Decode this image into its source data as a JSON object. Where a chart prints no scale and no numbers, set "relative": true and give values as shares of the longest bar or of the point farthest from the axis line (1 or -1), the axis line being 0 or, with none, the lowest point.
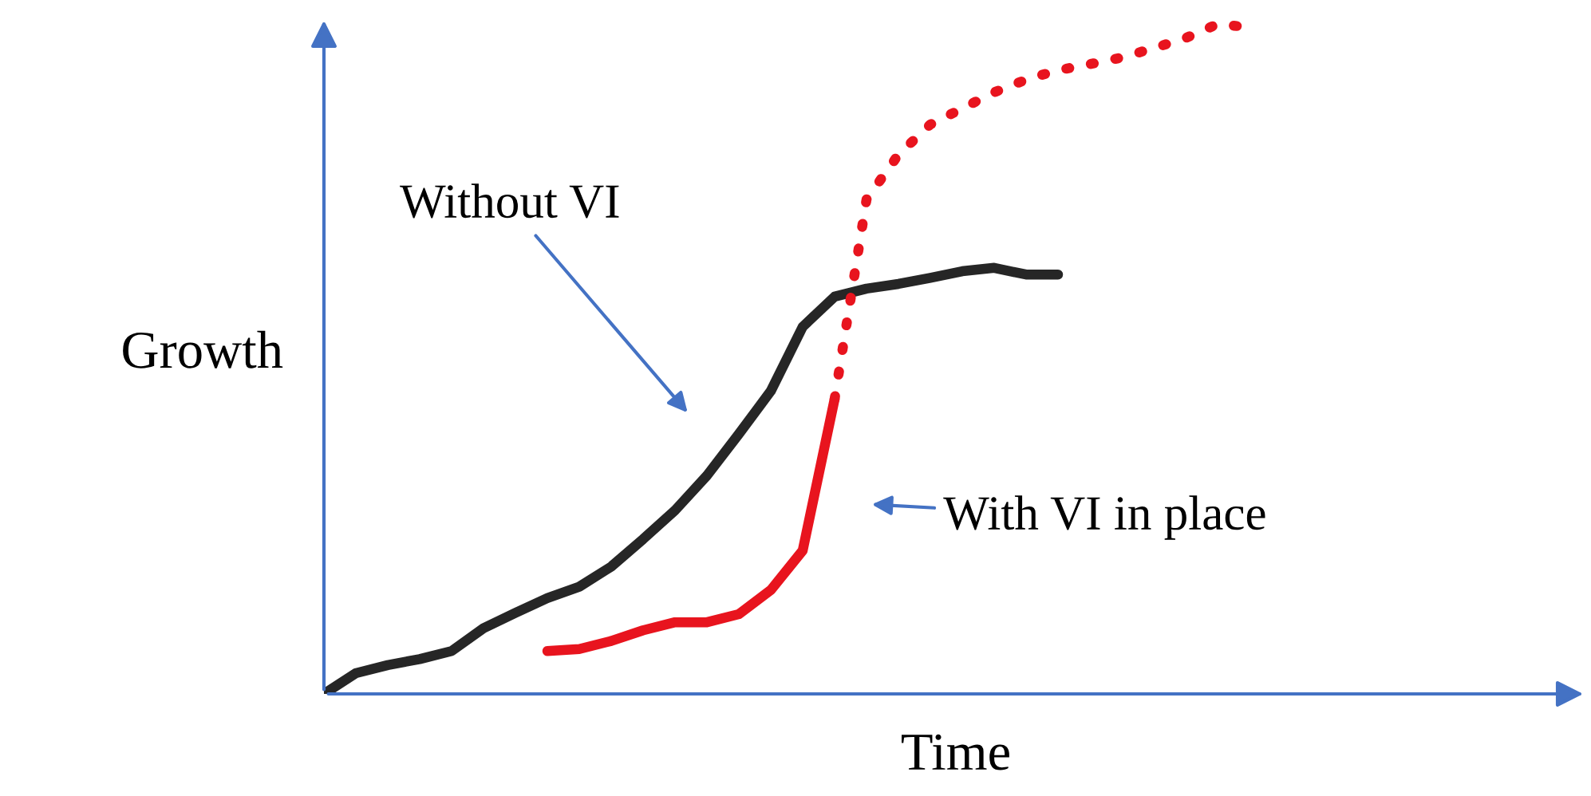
{
  "chart_data": {
    "type": "line",
    "relative": true,
    "xlabel": "Time",
    "ylabel": "Growth",
    "categories": [
      null,
      null,
      null,
      null,
      null,
      null,
      null,
      null,
      null,
      null,
      null,
      null,
      null,
      null,
      null,
      null,
      null,
      null,
      null,
      null,
      null,
      null,
      null,
      null,
      null,
      null,
      null,
      null,
      null,
      null,
      null,
      null,
      null,
      null,
      null,
      null,
      null,
      null,
      null,
      null
    ],
    "series": [
      {
        "name": "Without VI",
        "color": "#262626",
        "line_style": "solid",
        "values": [
          0,
          0.031,
          0.043,
          0.052,
          0.064,
          0.098,
          0.121,
          0.143,
          0.16,
          0.19,
          0.231,
          0.274,
          0.326,
          0.388,
          0.452,
          0.548,
          0.593,
          0.605,
          0.612,
          0.621,
          0.631,
          0.636,
          0.626,
          0.626,
          null,
          null,
          null,
          null,
          null,
          null,
          null,
          null,
          null,
          null,
          null,
          null,
          null,
          null,
          null,
          null
        ]
      },
      {
        "name": "With VI in place",
        "color": "#e8141e",
        "line_style": "solid",
        "values": [
          null,
          null,
          null,
          null,
          null,
          null,
          null,
          0.064,
          0.067,
          0.079,
          0.095,
          0.107,
          0.107,
          0.119,
          0.155,
          0.214,
          0.44,
          null,
          null,
          null,
          null,
          null,
          null,
          null,
          null,
          null,
          null,
          null,
          null,
          null,
          null,
          null,
          null,
          null,
          null,
          null,
          null,
          null,
          null,
          null
        ]
      },
      {
        "color": "#e8141e",
        "line_style": "dotted",
        "values": [
          null,
          null,
          null,
          null,
          null,
          null,
          null,
          null,
          null,
          null,
          null,
          null,
          null,
          null,
          null,
          null,
          0.44,
          0.738,
          0.805,
          0.85,
          0.874,
          0.898,
          0.917,
          0.931,
          0.94,
          0.95,
          0.964,
          0.979,
          1,
          0.995,
          null,
          null,
          null,
          null,
          null,
          null,
          null,
          null,
          null,
          null
        ]
      }
    ]
  }
}
